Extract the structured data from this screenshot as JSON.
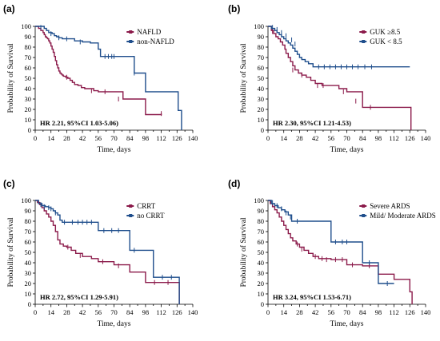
{
  "chart_data": [
    {
      "type": "line",
      "panel_label": "(a)",
      "xlabel": "Time, days",
      "ylabel": "Probability of Survival",
      "xlim": [
        0,
        140
      ],
      "ylim": [
        0,
        100
      ],
      "xticks": [
        "0",
        "7",
        "14",
        "21",
        "28",
        "35",
        "42",
        "49",
        "56",
        "63",
        "70",
        "77",
        "84",
        "91",
        "98",
        "105",
        "112",
        "119",
        "126",
        "133",
        "140"
      ],
      "xtick_labels": [
        "0",
        "14",
        "28",
        "42",
        "56",
        "70",
        "84",
        "98",
        "112",
        "126",
        "140"
      ],
      "yticks": [
        "0",
        "10",
        "20",
        "30",
        "40",
        "50",
        "60",
        "70",
        "80",
        "90",
        "100"
      ],
      "annotation": "HR 2.21, 95%CI 1.03-5.06)",
      "legend_position": "top-right",
      "series": [
        {
          "name": "NAFLD",
          "color": "#8b1a4a",
          "x": [
            0,
            3,
            5,
            7,
            8,
            9,
            10,
            11,
            12,
            13,
            14,
            15,
            16,
            17,
            18,
            19,
            20,
            21,
            22,
            23,
            24,
            25,
            27,
            29,
            31,
            33,
            35,
            38,
            41,
            44,
            48,
            52,
            56,
            70,
            78,
            84,
            98,
            112
          ],
          "y": [
            100,
            98,
            96,
            94,
            92,
            90,
            89,
            88,
            86,
            84,
            81,
            78,
            75,
            71,
            67,
            63,
            60,
            57,
            55,
            54,
            53,
            52,
            51,
            50,
            48,
            46,
            44,
            43,
            41,
            40,
            40,
            38,
            37,
            37,
            30,
            30,
            15,
            16
          ],
          "censored": [
            [
              28,
              51
            ],
            [
              50,
              38
            ],
            [
              62,
              37
            ],
            [
              74,
              30
            ],
            [
              112,
              16
            ]
          ]
        },
        {
          "name": "non-NAFLD",
          "color": "#1f4e8c",
          "x": [
            0,
            8,
            10,
            12,
            15,
            17,
            19,
            21,
            24,
            35,
            42,
            49,
            56,
            58,
            63,
            84,
            88,
            98,
            125,
            127,
            130
          ],
          "y": [
            100,
            98,
            96,
            94,
            93,
            91,
            90,
            89,
            88,
            86,
            85,
            84,
            78,
            71,
            71,
            71,
            55,
            37,
            37,
            19,
            0
          ],
          "censored": [
            [
              5,
              99
            ],
            [
              14,
              93
            ],
            [
              21,
              89
            ],
            [
              28,
              88
            ],
            [
              40,
              85
            ],
            [
              62,
              71
            ],
            [
              65,
              71
            ],
            [
              68,
              71
            ],
            [
              70,
              71
            ],
            [
              88,
              55
            ]
          ]
        }
      ]
    },
    {
      "type": "line",
      "panel_label": "(b)",
      "xlabel": "Time, days",
      "ylabel": "Probability of Survival",
      "xlim": [
        0,
        140
      ],
      "ylim": [
        0,
        100
      ],
      "xticks": [
        "0",
        "7",
        "14",
        "21",
        "28",
        "35",
        "42",
        "49",
        "56",
        "63",
        "70",
        "77",
        "84",
        "91",
        "98",
        "105",
        "112",
        "119",
        "126",
        "133",
        "140"
      ],
      "xtick_labels": [
        "0",
        "14",
        "28",
        "42",
        "56",
        "70",
        "84",
        "98",
        "112",
        "126",
        "140"
      ],
      "yticks": [
        "0",
        "10",
        "20",
        "30",
        "40",
        "50",
        "60",
        "70",
        "80",
        "90",
        "100"
      ],
      "annotation": "HR 2.30, 95%CI 1.21-4.53)",
      "legend_position": "top-right",
      "series": [
        {
          "name": "GUK ≥8.5",
          "color": "#8b1a4a",
          "x": [
            0,
            3,
            5,
            7,
            9,
            11,
            13,
            15,
            16,
            18,
            20,
            22,
            24,
            27,
            30,
            34,
            38,
            42,
            48,
            56,
            63,
            70,
            84,
            126,
            127
          ],
          "y": [
            100,
            96,
            93,
            90,
            88,
            85,
            82,
            78,
            74,
            70,
            66,
            62,
            58,
            55,
            53,
            51,
            48,
            45,
            43,
            43,
            40,
            37,
            22,
            22,
            0
          ],
          "censored": [
            [
              4,
              95
            ],
            [
              22,
              58
            ],
            [
              30,
              53
            ],
            [
              44,
              43
            ],
            [
              49,
              43
            ],
            [
              67,
              37
            ],
            [
              78,
              28
            ],
            [
              91,
              22
            ]
          ]
        },
        {
          "name": "GUK < 8.5",
          "color": "#1f4e8c",
          "x": [
            0,
            3,
            6,
            8,
            10,
            12,
            14,
            16,
            18,
            20,
            22,
            24,
            26,
            28,
            30,
            33,
            36,
            40,
            126
          ],
          "y": [
            100,
            98,
            96,
            94,
            92,
            90,
            88,
            86,
            84,
            82,
            79,
            76,
            73,
            70,
            68,
            66,
            64,
            61,
            61
          ],
          "censored": [
            [
              4,
              99
            ],
            [
              8,
              97
            ],
            [
              12,
              94
            ],
            [
              16,
              91
            ],
            [
              21,
              87
            ],
            [
              24,
              83
            ],
            [
              45,
              61
            ],
            [
              50,
              61
            ],
            [
              55,
              61
            ],
            [
              60,
              61
            ],
            [
              65,
              61
            ],
            [
              70,
              61
            ],
            [
              75,
              61
            ],
            [
              80,
              61
            ],
            [
              86,
              61
            ],
            [
              92,
              61
            ]
          ]
        }
      ]
    },
    {
      "type": "line",
      "panel_label": "(c)",
      "xlabel": "Time, days",
      "ylabel": "Probability of Survival",
      "xlim": [
        0,
        140
      ],
      "ylim": [
        0,
        100
      ],
      "xticks": [
        "0",
        "7",
        "14",
        "21",
        "28",
        "35",
        "42",
        "49",
        "56",
        "63",
        "70",
        "77",
        "84",
        "91",
        "98",
        "105",
        "112",
        "119",
        "126",
        "133",
        "140"
      ],
      "xtick_labels": [
        "0",
        "14",
        "28",
        "42",
        "56",
        "70",
        "84",
        "98",
        "112",
        "126",
        "140"
      ],
      "yticks": [
        "0",
        "10",
        "20",
        "30",
        "40",
        "50",
        "60",
        "70",
        "80",
        "90",
        "100"
      ],
      "annotation": "HR 2.72, 95%CI 1.29-5.91)",
      "legend_position": "top-right",
      "series": [
        {
          "name": "CRRT",
          "color": "#8b1a4a",
          "x": [
            0,
            2,
            4,
            6,
            8,
            10,
            12,
            14,
            16,
            18,
            20,
            22,
            25,
            28,
            32,
            36,
            42,
            50,
            56,
            70,
            84,
            98,
            126,
            128
          ],
          "y": [
            100,
            98,
            96,
            93,
            90,
            87,
            84,
            80,
            76,
            70,
            62,
            58,
            56,
            55,
            52,
            49,
            46,
            44,
            41,
            38,
            31,
            21,
            21,
            0
          ],
          "censored": [
            [
              29,
              55
            ],
            [
              40,
              47
            ],
            [
              60,
              41
            ],
            [
              74,
              37
            ],
            [
              106,
              21
            ],
            [
              118,
              21
            ]
          ]
        },
        {
          "name": "no CRRT",
          "color": "#1f4e8c",
          "x": [
            0,
            3,
            6,
            9,
            12,
            14,
            16,
            18,
            20,
            22,
            24,
            56,
            84,
            105,
            128
          ],
          "y": [
            100,
            97,
            95,
            94,
            93,
            92,
            90,
            88,
            86,
            81,
            79,
            71,
            52,
            26,
            0
          ],
          "censored": [
            [
              5,
              96
            ],
            [
              8,
              94
            ],
            [
              12,
              93
            ],
            [
              14,
              92
            ],
            [
              18,
              88
            ],
            [
              26,
              79
            ],
            [
              33,
              79
            ],
            [
              38,
              79
            ],
            [
              42,
              79
            ],
            [
              46,
              79
            ],
            [
              50,
              79
            ],
            [
              61,
              71
            ],
            [
              68,
              71
            ],
            [
              74,
              71
            ],
            [
              88,
              52
            ],
            [
              113,
              26
            ],
            [
              121,
              26
            ]
          ]
        }
      ]
    },
    {
      "type": "line",
      "panel_label": "(d)",
      "xlabel": "Time, days",
      "ylabel": "Probability of Survival",
      "xlim": [
        0,
        140
      ],
      "ylim": [
        0,
        100
      ],
      "xticks": [
        "0",
        "7",
        "14",
        "21",
        "28",
        "35",
        "42",
        "49",
        "56",
        "63",
        "70",
        "77",
        "84",
        "91",
        "98",
        "105",
        "112",
        "119",
        "126",
        "133",
        "140"
      ],
      "xtick_labels": [
        "0",
        "14",
        "28",
        "42",
        "56",
        "70",
        "84",
        "98",
        "112",
        "126",
        "140"
      ],
      "yticks": [
        "0",
        "10",
        "20",
        "30",
        "40",
        "50",
        "60",
        "70",
        "80",
        "90",
        "100"
      ],
      "annotation": "HR 3.24, 95%CI 1.53-6.71)",
      "legend_position": "top-right",
      "series": [
        {
          "name": "Severe ARDS",
          "color": "#8b1a4a",
          "x": [
            0,
            2,
            4,
            6,
            8,
            10,
            12,
            14,
            16,
            18,
            20,
            22,
            25,
            28,
            32,
            36,
            40,
            45,
            56,
            70,
            84,
            98,
            112,
            126,
            128
          ],
          "y": [
            100,
            97,
            94,
            91,
            88,
            84,
            80,
            76,
            72,
            68,
            64,
            61,
            58,
            55,
            52,
            49,
            46,
            44,
            43,
            38,
            37,
            29,
            24,
            12,
            0
          ],
          "censored": [
            [
              26,
              58
            ],
            [
              30,
              53
            ],
            [
              42,
              46
            ],
            [
              48,
              44
            ],
            [
              52,
              43
            ],
            [
              60,
              43
            ],
            [
              66,
              43
            ],
            [
              75,
              38
            ],
            [
              90,
              37
            ]
          ]
        },
        {
          "name": "Mild/ Moderate ARDS",
          "color": "#1f4e8c",
          "x": [
            0,
            3,
            6,
            9,
            12,
            15,
            18,
            21,
            56,
            63,
            84,
            98,
            112
          ],
          "y": [
            100,
            97,
            95,
            93,
            91,
            89,
            86,
            80,
            60,
            60,
            40,
            20,
            20
          ],
          "censored": [
            [
              4,
              98
            ],
            [
              8,
              95
            ],
            [
              12,
              92
            ],
            [
              16,
              88
            ],
            [
              20,
              84
            ],
            [
              26,
              80
            ],
            [
              60,
              60
            ],
            [
              66,
              60
            ],
            [
              70,
              60
            ],
            [
              90,
              40
            ],
            [
              106,
              20
            ]
          ]
        }
      ]
    }
  ]
}
